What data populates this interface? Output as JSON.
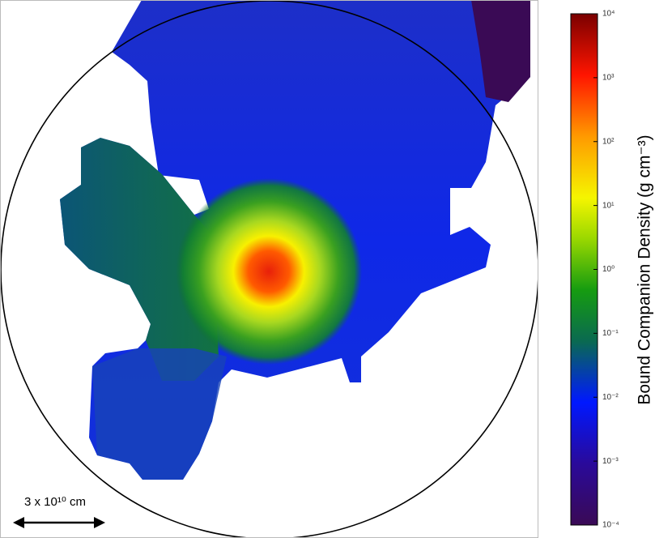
{
  "chart_data": {
    "type": "heatmap",
    "colorbar": {
      "label": "Bound Companion Density (g cm⁻³)",
      "scale": "log",
      "lim": [
        0.0001,
        10000
      ],
      "ticks": [
        {
          "value": 0.0001,
          "label": "10⁻⁴"
        },
        {
          "value": 0.001,
          "label": "10⁻³"
        },
        {
          "value": 0.01,
          "label": "10⁻²"
        },
        {
          "value": 0.1,
          "label": "10⁻¹"
        },
        {
          "value": 1,
          "label": "10⁰"
        },
        {
          "value": 10,
          "label": "10¹"
        },
        {
          "value": 100,
          "label": "10²"
        },
        {
          "value": 1000,
          "label": "10³"
        },
        {
          "value": 10000,
          "label": "10⁴"
        }
      ]
    },
    "scale_bar": "3 x 10¹⁰ cm"
  }
}
